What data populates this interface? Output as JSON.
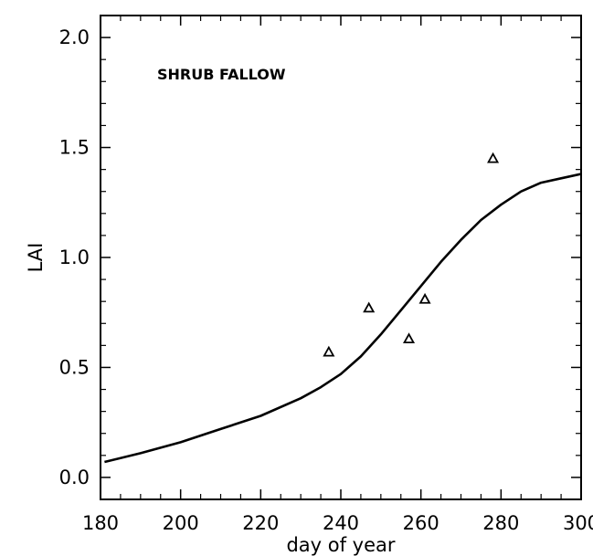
{
  "chart_data": {
    "type": "line",
    "title": "",
    "annotation": "SHRUB FALLOW",
    "xlabel": "day of year",
    "ylabel": "LAI",
    "xlim": [
      180,
      300
    ],
    "ylim": [
      -0.1,
      2.1
    ],
    "xticks": [
      180,
      200,
      220,
      240,
      260,
      280,
      300
    ],
    "xtick_labels": [
      "180",
      "200",
      "220",
      "240",
      "260",
      "280",
      "300"
    ],
    "yticks": [
      0.0,
      0.5,
      1.0,
      1.5,
      2.0
    ],
    "ytick_labels": [
      "0.0",
      "0.5",
      "1.0",
      "1.5",
      "2.0"
    ],
    "grid": false,
    "series": [
      {
        "type": "line",
        "x": [
          181,
          190,
          200,
          210,
          220,
          230,
          235,
          240,
          245,
          250,
          255,
          260,
          265,
          270,
          275,
          280,
          285,
          290,
          295,
          300
        ],
        "y": [
          0.07,
          0.11,
          0.16,
          0.22,
          0.28,
          0.36,
          0.41,
          0.47,
          0.55,
          0.65,
          0.76,
          0.87,
          0.98,
          1.08,
          1.17,
          1.24,
          1.3,
          1.34,
          1.36,
          1.38
        ]
      },
      {
        "type": "scatter",
        "marker": "triangle",
        "x": [
          237,
          247,
          257,
          261,
          278
        ],
        "y": [
          0.57,
          0.77,
          0.63,
          0.81,
          1.45
        ]
      }
    ]
  }
}
